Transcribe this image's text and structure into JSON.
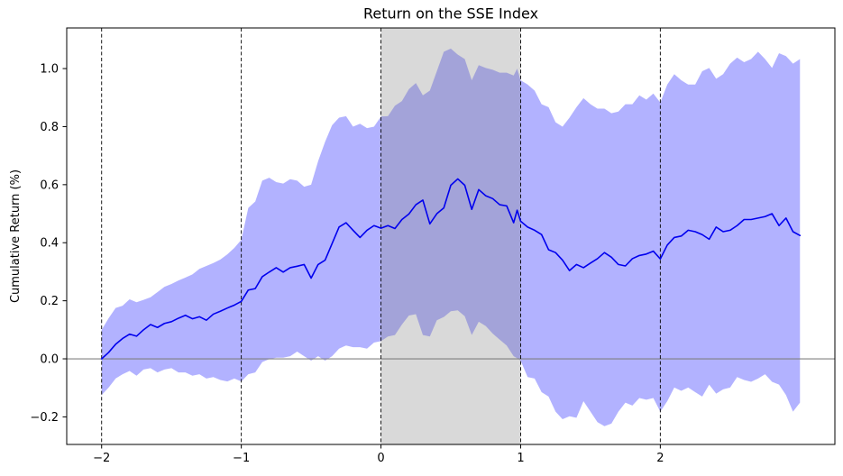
{
  "chart_data": {
    "type": "line",
    "title": "Return on the SSE Index",
    "xlabel": "",
    "ylabel": "Cumulative Return (%)",
    "xlim": [
      -2.25,
      3.25
    ],
    "ylim": [
      -0.295,
      1.14
    ],
    "grid": false,
    "legend": null,
    "xticks": {
      "values": [
        -2,
        -1,
        0,
        1,
        2
      ],
      "labels": [
        "−2",
        "−1",
        "0",
        "1",
        "2"
      ]
    },
    "yticks": {
      "values": [
        -0.2,
        0.0,
        0.2,
        0.4,
        0.6,
        0.8,
        1.0
      ],
      "labels": [
        "−0.2",
        "0.0",
        "0.2",
        "0.4",
        "0.6",
        "0.8",
        "1.0"
      ]
    },
    "event_window": {
      "x0": 0,
      "x1": 1,
      "color": "#808080",
      "alpha": 0.3
    },
    "vlines": {
      "x": [
        -2,
        -1,
        0,
        1,
        2
      ],
      "color": "#000000",
      "style": "dashed"
    },
    "hline": {
      "y": 0,
      "color": "#808080"
    },
    "x": [
      -2,
      -1.95,
      -1.9,
      -1.85,
      -1.8,
      -1.75,
      -1.7,
      -1.65,
      -1.6,
      -1.55,
      -1.5,
      -1.45,
      -1.4,
      -1.35,
      -1.3,
      -1.25,
      -1.2,
      -1.15,
      -1.1,
      -1.05,
      -1,
      -0.95,
      -0.9,
      -0.85,
      -0.8,
      -0.75,
      -0.7,
      -0.65,
      -0.6,
      -0.55,
      -0.5,
      -0.45,
      -0.4,
      -0.35,
      -0.3,
      -0.25,
      -0.2,
      -0.15,
      -0.1,
      -0.05,
      0,
      0.05,
      0.1,
      0.15,
      0.2,
      0.25,
      0.3,
      0.35,
      0.4,
      0.45,
      0.5,
      0.55,
      0.6,
      0.65,
      0.7,
      0.75,
      0.8,
      0.85,
      0.9,
      0.95,
      0.975,
      1,
      1.05,
      1.1,
      1.15,
      1.2,
      1.25,
      1.3,
      1.35,
      1.4,
      1.45,
      1.5,
      1.55,
      1.6,
      1.65,
      1.7,
      1.75,
      1.8,
      1.85,
      1.9,
      1.95,
      2,
      2.05,
      2.1,
      2.15,
      2.2,
      2.25,
      2.3,
      2.35,
      2.4,
      2.45,
      2.5,
      2.55,
      2.6,
      2.65,
      2.7,
      2.75,
      2.8,
      2.85,
      2.9,
      2.95,
      3
    ],
    "series": [
      {
        "name": "mean_cumulative_return",
        "kind": "line",
        "color": "#0000ee",
        "linewidth": 1.6,
        "values": [
          0.0,
          0.022,
          0.05,
          0.07,
          0.085,
          0.078,
          0.1,
          0.118,
          0.108,
          0.122,
          0.128,
          0.14,
          0.15,
          0.138,
          0.145,
          0.133,
          0.154,
          0.164,
          0.175,
          0.185,
          0.198,
          0.237,
          0.242,
          0.283,
          0.299,
          0.314,
          0.299,
          0.314,
          0.319,
          0.325,
          0.278,
          0.325,
          0.34,
          0.397,
          0.454,
          0.469,
          0.443,
          0.418,
          0.443,
          0.459,
          0.45,
          0.459,
          0.449,
          0.48,
          0.499,
          0.531,
          0.547,
          0.465,
          0.5,
          0.52,
          0.598,
          0.62,
          0.598,
          0.515,
          0.583,
          0.562,
          0.552,
          0.531,
          0.527,
          0.469,
          0.512,
          0.474,
          0.454,
          0.443,
          0.428,
          0.376,
          0.366,
          0.34,
          0.304,
          0.325,
          0.314,
          0.33,
          0.345,
          0.366,
          0.35,
          0.325,
          0.32,
          0.345,
          0.356,
          0.361,
          0.371,
          0.344,
          0.392,
          0.418,
          0.423,
          0.443,
          0.438,
          0.428,
          0.412,
          0.454,
          0.438,
          0.443,
          0.459,
          0.48,
          0.48,
          0.485,
          0.49,
          0.5,
          0.459,
          0.485,
          0.438,
          0.425
        ]
      },
      {
        "name": "confidence_band",
        "kind": "band",
        "color": "#0000ff",
        "alpha": 0.3,
        "upper": [
          0.1,
          0.14,
          0.175,
          0.183,
          0.205,
          0.195,
          0.203,
          0.212,
          0.23,
          0.248,
          0.258,
          0.27,
          0.28,
          0.291,
          0.31,
          0.32,
          0.33,
          0.342,
          0.36,
          0.382,
          0.41,
          0.52,
          0.542,
          0.614,
          0.624,
          0.609,
          0.604,
          0.619,
          0.614,
          0.593,
          0.6,
          0.681,
          0.748,
          0.805,
          0.831,
          0.836,
          0.8,
          0.81,
          0.795,
          0.8,
          0.835,
          0.836,
          0.872,
          0.888,
          0.929,
          0.95,
          0.908,
          0.924,
          0.991,
          1.058,
          1.069,
          1.048,
          1.033,
          0.96,
          1.012,
          1.002,
          0.996,
          0.986,
          0.986,
          0.976,
          1.0,
          0.96,
          0.945,
          0.924,
          0.877,
          0.867,
          0.815,
          0.8,
          0.831,
          0.867,
          0.898,
          0.877,
          0.862,
          0.862,
          0.846,
          0.852,
          0.877,
          0.877,
          0.908,
          0.893,
          0.914,
          0.883,
          0.945,
          0.981,
          0.96,
          0.945,
          0.945,
          0.991,
          1.002,
          0.965,
          0.981,
          1.017,
          1.038,
          1.022,
          1.033,
          1.058,
          1.033,
          1.002,
          1.053,
          1.043,
          1.017,
          1.033
        ],
        "lower": [
          -0.125,
          -0.099,
          -0.068,
          -0.053,
          -0.042,
          -0.058,
          -0.037,
          -0.032,
          -0.047,
          -0.037,
          -0.032,
          -0.047,
          -0.047,
          -0.058,
          -0.053,
          -0.068,
          -0.063,
          -0.073,
          -0.078,
          -0.068,
          -0.078,
          -0.053,
          -0.047,
          -0.011,
          -0.001,
          0.004,
          0.004,
          0.009,
          0.025,
          0.009,
          -0.006,
          0.009,
          -0.006,
          0.009,
          0.035,
          0.046,
          0.04,
          0.04,
          0.035,
          0.056,
          0.061,
          0.077,
          0.082,
          0.118,
          0.149,
          0.154,
          0.082,
          0.077,
          0.133,
          0.144,
          0.164,
          0.167,
          0.147,
          0.082,
          0.128,
          0.113,
          0.087,
          0.066,
          0.046,
          0.009,
          0.002,
          -0.006,
          -0.063,
          -0.068,
          -0.115,
          -0.13,
          -0.182,
          -0.208,
          -0.198,
          -0.203,
          -0.146,
          -0.182,
          -0.218,
          -0.232,
          -0.223,
          -0.182,
          -0.151,
          -0.161,
          -0.135,
          -0.141,
          -0.135,
          -0.182,
          -0.146,
          -0.099,
          -0.11,
          -0.099,
          -0.115,
          -0.13,
          -0.089,
          -0.12,
          -0.105,
          -0.099,
          -0.063,
          -0.073,
          -0.079,
          -0.068,
          -0.053,
          -0.079,
          -0.089,
          -0.125,
          -0.182,
          -0.151
        ]
      }
    ]
  }
}
